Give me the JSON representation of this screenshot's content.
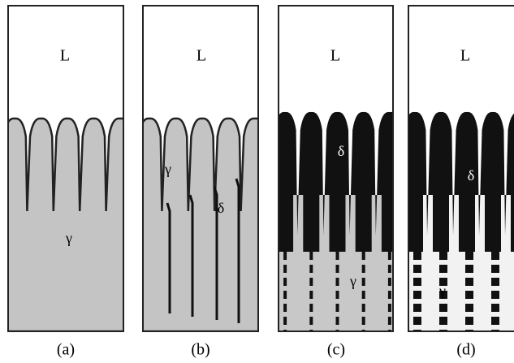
{
  "panels": [
    {
      "caption": "(a)",
      "labels": [
        "L",
        "γ"
      ]
    },
    {
      "caption": "(b)",
      "labels": [
        "L",
        "γ",
        "δ"
      ]
    },
    {
      "caption": "(c)",
      "labels": [
        "L",
        "δ",
        "γ"
      ]
    },
    {
      "caption": "(d)",
      "labels": [
        "L",
        "δ",
        "γ"
      ]
    }
  ]
}
